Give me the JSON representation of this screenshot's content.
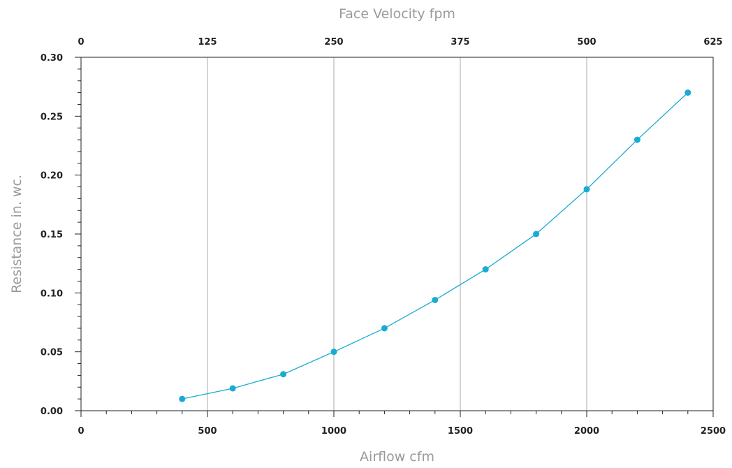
{
  "chart_data": {
    "type": "line",
    "title": "",
    "xlabel": "Airflow cfm",
    "ylabel": "Resistance in. wc.",
    "x2label": "Face Velocity fpm",
    "xlim": [
      0,
      2500
    ],
    "ylim": [
      0,
      0.3
    ],
    "x2lim": [
      0,
      625
    ],
    "x_ticks": [
      0,
      500,
      1000,
      1500,
      2000,
      2500
    ],
    "x_tick_labels": [
      "0",
      "500",
      "1000",
      "1500",
      "2000",
      "2500"
    ],
    "x2_ticks": [
      0,
      125,
      250,
      375,
      500,
      625
    ],
    "x2_tick_labels": [
      "0",
      "125",
      "250",
      "375",
      "500",
      "625"
    ],
    "y_ticks": [
      0,
      0.05,
      0.1,
      0.15,
      0.2,
      0.25,
      0.3
    ],
    "y_tick_labels": [
      "0.00",
      "0.05",
      "0.10",
      "0.15",
      "0.20",
      "0.25",
      "0.30"
    ],
    "grid": "vertical",
    "series": [
      {
        "x": [
          400,
          600,
          800,
          1000,
          1200,
          1400,
          1600,
          1800,
          2000,
          2200,
          2400
        ],
        "y": [
          0.01,
          0.019,
          0.031,
          0.05,
          0.07,
          0.094,
          0.12,
          0.15,
          0.188,
          0.23,
          0.27
        ],
        "color": "#1aabd3"
      }
    ]
  }
}
